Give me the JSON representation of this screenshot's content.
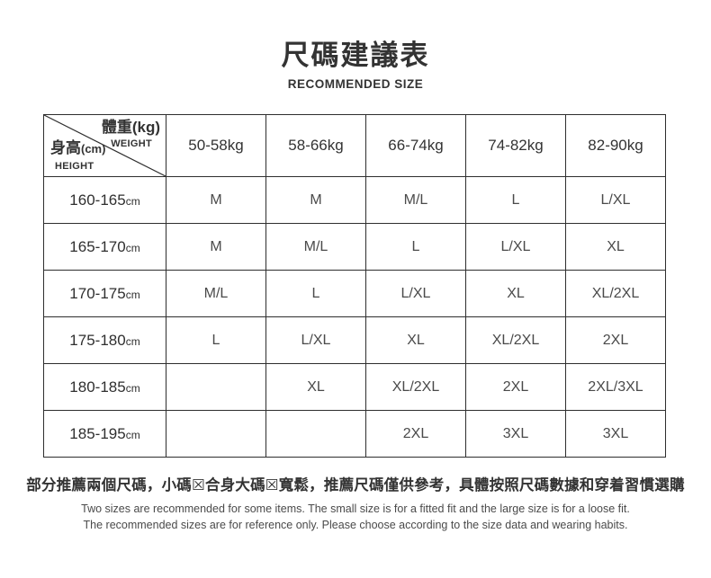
{
  "page": {
    "title": "尺碼建議表",
    "subtitle": "RECOMMENDED SIZE"
  },
  "table": {
    "corner": {
      "weight_label": "體重(kg)",
      "weight_sub": "WEIGHT",
      "height_label": "身高",
      "height_unit": "(cm)",
      "height_sub": "HEIGHT"
    },
    "weight_headers": [
      "50-58kg",
      "58-66kg",
      "66-74kg",
      "74-82kg",
      "82-90kg"
    ],
    "rows": [
      {
        "height_range": "160-165",
        "unit": "cm",
        "sizes": [
          "M",
          "M",
          "M/L",
          "L",
          "L/XL"
        ]
      },
      {
        "height_range": "165-170",
        "unit": "cm",
        "sizes": [
          "M",
          "M/L",
          "L",
          "L/XL",
          "XL"
        ]
      },
      {
        "height_range": "170-175",
        "unit": "cm",
        "sizes": [
          "M/L",
          "L",
          "L/XL",
          "XL",
          "XL/2XL"
        ]
      },
      {
        "height_range": "175-180",
        "unit": "cm",
        "sizes": [
          "L",
          "L/XL",
          "XL",
          "XL/2XL",
          "2XL"
        ]
      },
      {
        "height_range": "180-185",
        "unit": "cm",
        "sizes": [
          "",
          "XL",
          "XL/2XL",
          "2XL",
          "2XL/3XL"
        ]
      },
      {
        "height_range": "185-195",
        "unit": "cm",
        "sizes": [
          "",
          "",
          "2XL",
          "3XL",
          "3XL"
        ]
      }
    ]
  },
  "footer": {
    "note_cn": "部分推薦兩個尺碼，小碼☒合身大碼☒寬鬆，推薦尺碼僅供參考，具體按照尺碼數據和穿着習慣選購",
    "note_en_line1": "Two sizes are recommended for some items. The small size is for a fitted fit and the large size is for a loose fit.",
    "note_en_line2": "The recommended sizes are for reference only. Please choose according to the size data and wearing habits."
  },
  "colors": {
    "text_primary": "#333333",
    "text_cell": "#4a4a4a",
    "border": "#2e2e2e",
    "background": "#ffffff"
  }
}
